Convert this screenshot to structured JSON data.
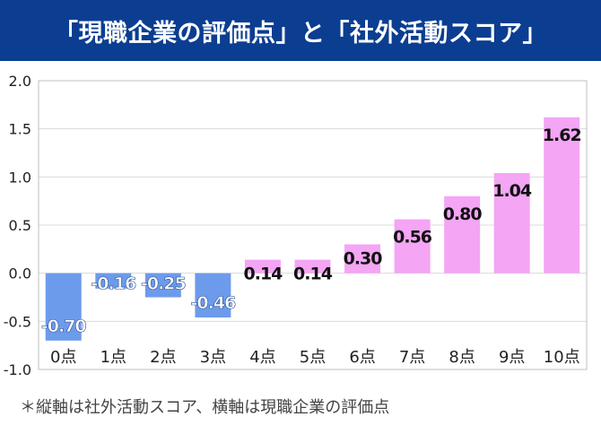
{
  "title": "「現職企業の評価点」と「社外活動スコア」",
  "footnote": "＊縦軸は社外活動スコア、横軸は現職企業の評価点",
  "colors": {
    "header_bg": "#0b3e91",
    "header_text": "#ffffff",
    "negative_bar": "#6d9bec",
    "positive_bar": "#f4a5f4",
    "grid": "#d9d9d9"
  },
  "chart_data": {
    "type": "bar",
    "categories": [
      "0点",
      "1点",
      "2点",
      "3点",
      "4点",
      "5点",
      "6点",
      "7点",
      "8点",
      "9点",
      "10点"
    ],
    "values": [
      -0.7,
      -0.16,
      -0.25,
      -0.46,
      0.14,
      0.14,
      0.3,
      0.56,
      0.8,
      1.04,
      1.62
    ],
    "value_labels": [
      "-0.70",
      "-0.16",
      "-0.25",
      "-0.46",
      "0.14",
      "0.14",
      "0.30",
      "0.56",
      "0.80",
      "1.04",
      "1.62"
    ],
    "yticks": [
      "2.0",
      "1.5",
      "1.0",
      "0.5",
      "0.0",
      "-0.5",
      "-1.0"
    ],
    "ylim": [
      -1.0,
      2.0
    ],
    "grid": true,
    "legend": "none"
  }
}
